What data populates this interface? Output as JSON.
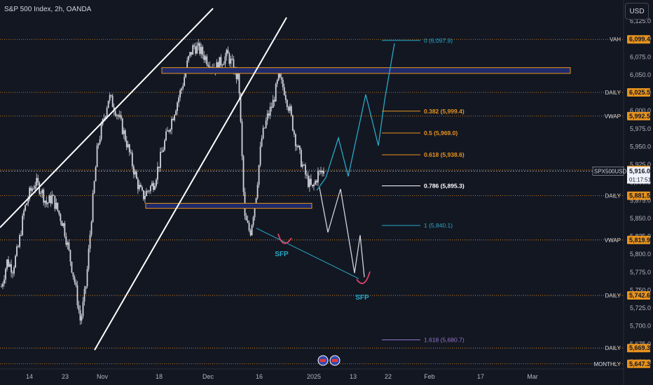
{
  "header": {
    "symbol": "S&P 500 Index, 2h, OANDA"
  },
  "currency_button": "USD",
  "colors": {
    "background": "#131722",
    "candle": "#d1d4dc",
    "level": "#e8931e",
    "zone": "#1f2a6b",
    "projection": "#26a9c6",
    "trendline": "#ffffff",
    "arrow": "#ef476f"
  },
  "chart_data": {
    "type": "candlestick",
    "ylim": [
      5635,
      6125
    ],
    "y_ticks": [
      5650,
      5675,
      5700,
      5725,
      5750,
      5775,
      5800,
      5825,
      5850,
      5875,
      5900,
      5925,
      5950,
      5975,
      6000,
      6025,
      6050,
      6075,
      6100,
      6125
    ],
    "x_ticks": [
      "14",
      "23",
      "Nov",
      "18",
      "Dec",
      "16",
      "2025",
      "13",
      "22",
      "Feb",
      "17",
      "Mar"
    ],
    "levels": [
      {
        "label": "VAH",
        "value": 6099.4
      },
      {
        "label": "DAILY",
        "value": 6025.5
      },
      {
        "label": "VWAP",
        "value": 5992.5
      },
      {
        "label": "",
        "value": 5917.5
      },
      {
        "label": "DAILY",
        "value": 5881.5
      },
      {
        "label": "VWAP",
        "value": 5819.9
      },
      {
        "label": "DAILY",
        "value": 5742.6
      },
      {
        "label": "DAILY",
        "value": 5669.3
      },
      {
        "label": "MONTHLY",
        "value": 5647.3
      }
    ],
    "current_price": {
      "symbol": "SPX500USD",
      "value": 5916.0,
      "countdown": "01:17:51"
    },
    "fibonacci": [
      {
        "label": "0 (6,097.9)",
        "value": 6097.9
      },
      {
        "label": "0.382 (5,999.4)",
        "value": 5999.4
      },
      {
        "label": "0.5 (5,969.0)",
        "value": 5969.0
      },
      {
        "label": "0.618 (5,938.6)",
        "value": 5938.6
      },
      {
        "label": "0.786 (5,895.3)",
        "value": 5895.3
      },
      {
        "label": "1 (5,840.1)",
        "value": 5840.1
      },
      {
        "label": "1.618 (5,680.7)",
        "value": 5680.7
      }
    ],
    "zones": [
      {
        "top": 6060,
        "bottom": 6052
      },
      {
        "top": 5871,
        "bottom": 5864
      }
    ],
    "annotations": [
      "SFP",
      "SFP"
    ],
    "price_path": [
      5755,
      5790,
      5780,
      5810,
      5860,
      5885,
      5900,
      5890,
      5870,
      5880,
      5860,
      5840,
      5800,
      5760,
      5705,
      5760,
      5860,
      5950,
      5985,
      6020,
      6005,
      5985,
      5960,
      5930,
      5900,
      5880,
      5890,
      5900,
      5930,
      5960,
      5985,
      6010,
      6035,
      6070,
      6090,
      6085,
      6075,
      6065,
      6060,
      6070,
      6078,
      6060,
      6040,
      5850,
      5830,
      5880,
      5960,
      5990,
      6010,
      6045,
      6030,
      6000,
      5960,
      5930,
      5905,
      5890,
      5912,
      5916
    ]
  }
}
